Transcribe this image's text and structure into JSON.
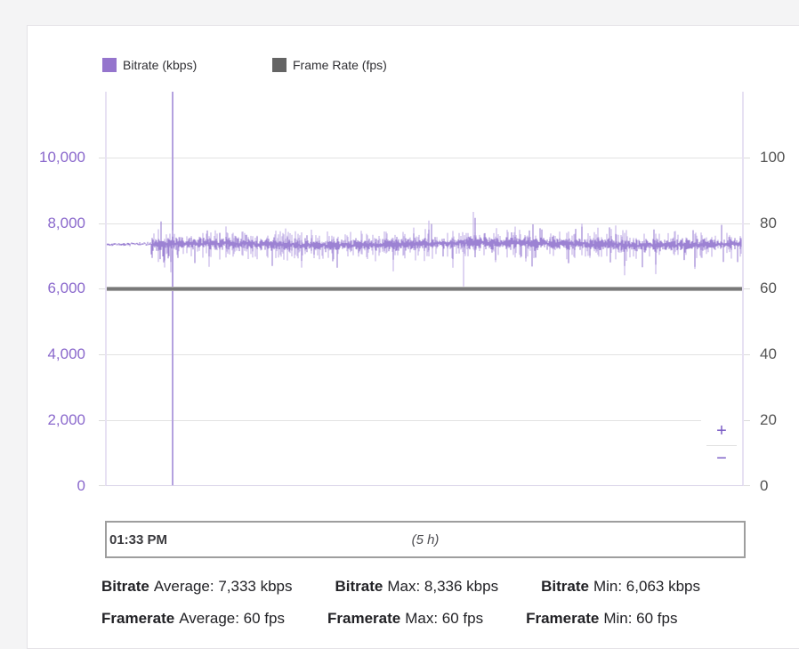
{
  "legend": {
    "items": [
      {
        "label": "Bitrate (kbps)",
        "color": "#9575cd"
      },
      {
        "label": "Frame Rate (fps)",
        "color": "#646464"
      }
    ]
  },
  "chart_data": {
    "type": "line",
    "title": "",
    "grid": true,
    "legend_position": "top-left",
    "x_window": {
      "start": "01:33 PM",
      "duration": "(5 h)"
    },
    "y_left": {
      "label": "Bitrate (kbps)",
      "ticks": [
        "10,000",
        "8,000",
        "6,000",
        "4,000",
        "2,000",
        "0"
      ],
      "range": [
        0,
        12000
      ],
      "color": "#8a68cc"
    },
    "y_right": {
      "label": "Frame Rate (fps)",
      "ticks": [
        "100",
        "80",
        "60",
        "40",
        "20",
        "0"
      ],
      "range": [
        0,
        120
      ],
      "color": "#545454"
    },
    "series": [
      {
        "name": "Bitrate (kbps)",
        "style": "noisy-band",
        "color": "#9c82d3",
        "spike_color": "#c7b8e8",
        "avg": 7333,
        "max": 8336,
        "min": 6063,
        "unit": "kbps",
        "calm_until_fraction": 0.072,
        "seed": 11
      },
      {
        "name": "Frame Rate (fps)",
        "style": "flat-line",
        "color": "#757575",
        "edge_color": "#c4c4c4",
        "value": 60,
        "avg": 60,
        "max": 60,
        "min": 60,
        "unit": "fps"
      }
    ],
    "marker": {
      "x_fraction": 0.102,
      "color": "#b4a1df"
    }
  },
  "controls": {
    "zoom_in": "+",
    "zoom_out": "−"
  },
  "timebar": {
    "start": "01:33 PM",
    "window": "(5 h)"
  },
  "stats": {
    "rows": [
      [
        {
          "label": "Bitrate",
          "value": "Average: 7,333 kbps"
        },
        {
          "label": "Bitrate",
          "value": "Max: 8,336 kbps"
        },
        {
          "label": "Bitrate",
          "value": "Min: 6,063 kbps"
        }
      ],
      [
        {
          "label": "Framerate",
          "value": "Average: 60 fps"
        },
        {
          "label": "Framerate",
          "value": "Max: 60 fps"
        },
        {
          "label": "Framerate",
          "value": "Min: 60 fps"
        }
      ]
    ]
  }
}
